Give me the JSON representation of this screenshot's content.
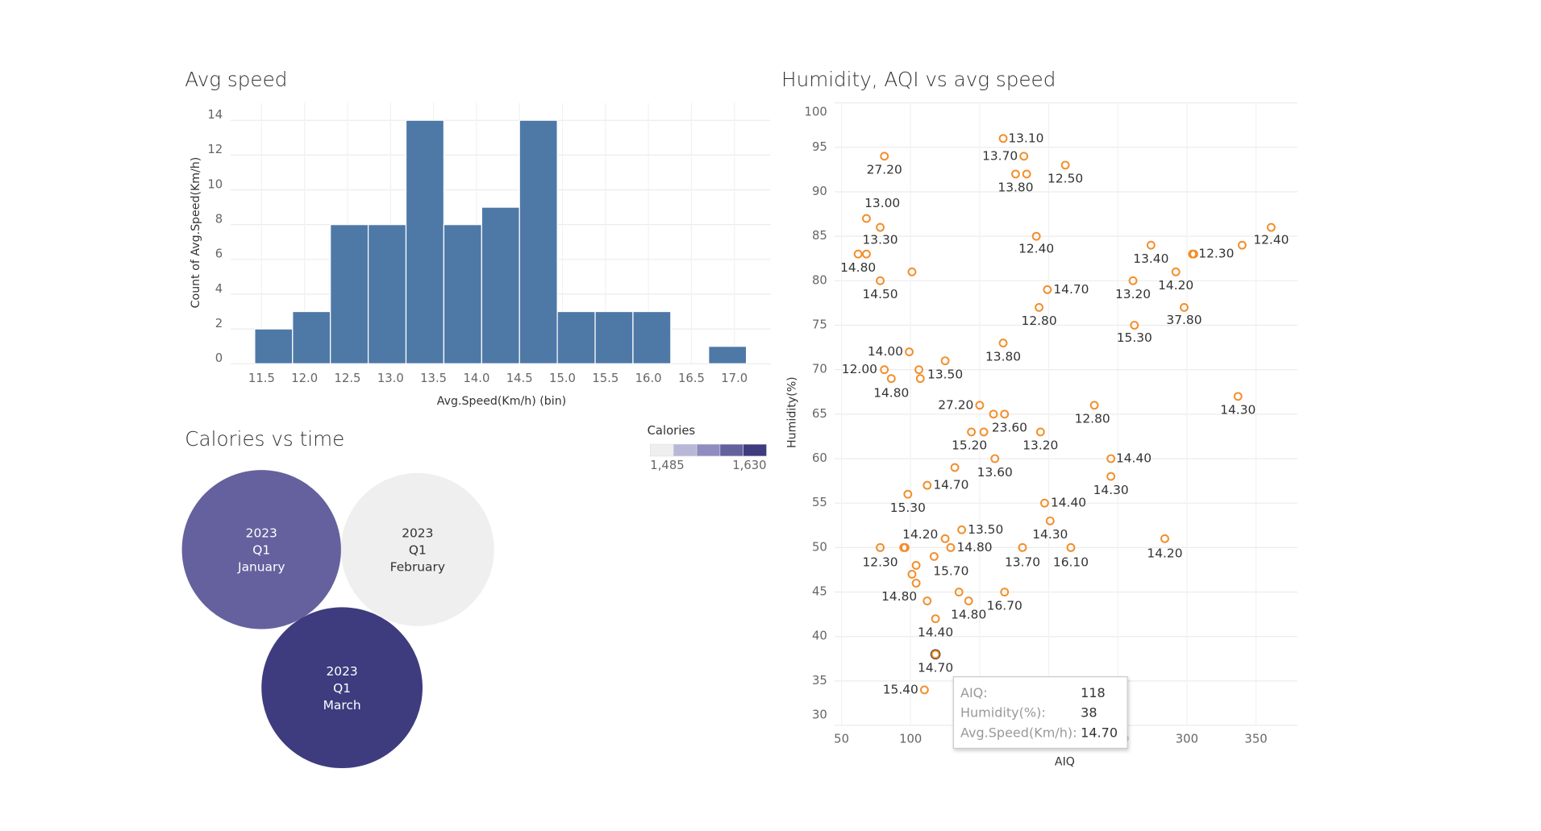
{
  "chart_data": [
    {
      "type": "histogram",
      "title": "Avg speed",
      "x_label": "Avg.Speed(Km/h) (bin)",
      "y_label": "Count of Avg.Speed(Km/h)",
      "bins": [
        11.42,
        11.86,
        12.3,
        12.74,
        13.18,
        13.62,
        14.06,
        14.5,
        14.94,
        15.38,
        15.82,
        16.26,
        16.7,
        17.14
      ],
      "values": [
        2,
        3,
        8,
        8,
        14,
        8,
        9,
        14,
        3,
        3,
        3,
        0,
        1
      ],
      "color": "#4e79a7",
      "xlim": [
        11.14,
        17.42
      ],
      "xticks": [
        11.5,
        {
          "value": 12,
          "label": "12.0"
        },
        12.5,
        {
          "value": 13,
          "label": "13.0"
        },
        13.5,
        {
          "value": 14,
          "label": "14.0"
        },
        14.5,
        {
          "value": 15,
          "label": "15.0"
        },
        15.5,
        {
          "value": 16,
          "label": "16.0"
        },
        16.5,
        {
          "value": 17,
          "label": "17.0"
        }
      ],
      "ylim": [
        0,
        15
      ],
      "yticks": [
        0,
        2,
        4,
        6,
        8,
        10,
        12,
        14
      ],
      "grid": true
    },
    {
      "type": "bubble",
      "title": "Calories vs time",
      "legend_title": "Calories",
      "labels": [
        [
          "2023",
          "Q1",
          "January"
        ],
        [
          "2023",
          "Q1",
          "February"
        ],
        [
          "2023",
          "Q1",
          "March"
        ]
      ],
      "values": [
        1595,
        1485,
        1630
      ],
      "palette": [
        "#efefef",
        "#b8b7d7",
        "#8e8cc0",
        "#65619e",
        "#3e3c7e"
      ],
      "color_range": [
        {
          "value": 1485,
          "label": "1,485"
        },
        {
          "value": 1630,
          "label": "1,630"
        }
      ]
    },
    {
      "type": "scatter",
      "title": "Humidity, AQI vs avg speed",
      "x_label": "AIQ",
      "y_label": "Humidity(%)",
      "color": "#f28e2b",
      "x": [
        81,
        167,
        182,
        176,
        184,
        212,
        68,
        78,
        62,
        68,
        101,
        78,
        191,
        199,
        193,
        167,
        274,
        304,
        305,
        361,
        340,
        261,
        292,
        298,
        262,
        99,
        81,
        86,
        125,
        106,
        107,
        150,
        160,
        168,
        144,
        153,
        194,
        161,
        233,
        337,
        245,
        245,
        132,
        112,
        98,
        197,
        201,
        137,
        125,
        129,
        78,
        95,
        96,
        117,
        104,
        101,
        104,
        181,
        216,
        284,
        135,
        142,
        168,
        112,
        118,
        118,
        110
      ],
      "values": [
        94,
        96,
        94,
        92,
        92,
        93,
        87,
        86,
        83,
        83,
        81,
        80,
        85,
        79,
        77,
        73,
        84,
        83,
        83,
        86,
        84,
        80,
        81,
        77,
        75,
        72,
        70,
        69,
        71,
        70,
        69,
        66,
        65,
        65,
        63,
        63,
        63,
        60,
        66,
        67,
        60,
        58,
        59,
        57,
        56,
        55,
        53,
        52,
        51,
        50,
        50,
        50,
        50,
        49,
        48,
        47,
        46,
        50,
        50,
        51,
        45,
        44,
        45,
        44,
        42,
        38,
        34
      ],
      "labels": [
        "27.20",
        "13.10",
        "13.70",
        "13.80",
        null,
        "12.50",
        "13.00",
        "13.30",
        "14.80",
        null,
        null,
        "14.50",
        "12.40",
        "14.70",
        "12.80",
        "13.80",
        "13.40",
        "12.30",
        null,
        "12.40",
        null,
        "13.20",
        "14.20",
        "37.80",
        "15.30",
        "14.00",
        "12.00",
        "14.80",
        "13.50",
        null,
        null,
        "27.20",
        null,
        "23.60",
        "15.20",
        null,
        "13.20",
        "13.60",
        "12.80",
        "14.30",
        "14.40",
        "14.30",
        null,
        "14.70",
        "15.30",
        "14.40",
        "14.30",
        "13.50",
        "14.20",
        "14.80",
        "12.30",
        null,
        null,
        "15.70",
        null,
        null,
        "14.80",
        "13.70",
        "16.10",
        "14.20",
        null,
        "14.80",
        "16.70",
        null,
        "14.40",
        "14.70",
        "15.40"
      ],
      "xlim": [
        45,
        380
      ],
      "xticks": [
        50,
        100,
        150,
        200,
        250,
        300,
        350
      ],
      "ylim": [
        30,
        100
      ],
      "yticks": [
        30,
        35,
        40,
        45,
        50,
        55,
        60,
        65,
        70,
        75,
        80,
        85,
        90,
        95,
        100
      ],
      "grid": true,
      "tooltip": [
        [
          "AIQ:",
          118
        ],
        [
          "Humidity(%):",
          38
        ],
        [
          "Avg.Speed(Km/h):",
          "14.70"
        ]
      ]
    }
  ]
}
